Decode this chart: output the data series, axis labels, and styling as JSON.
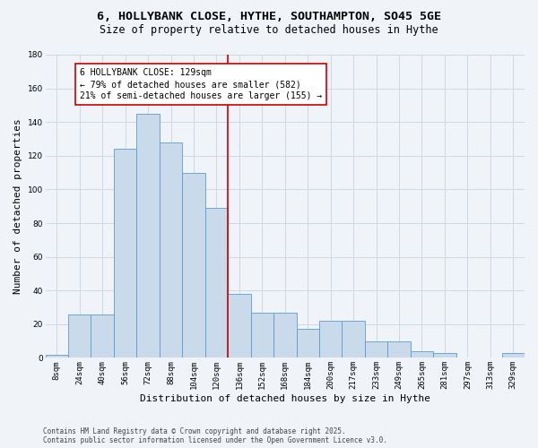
{
  "title_line1": "6, HOLLYBANK CLOSE, HYTHE, SOUTHAMPTON, SO45 5GE",
  "title_line2": "Size of property relative to detached houses in Hythe",
  "xlabel": "Distribution of detached houses by size in Hythe",
  "ylabel": "Number of detached properties",
  "bar_labels": [
    "8sqm",
    "24sqm",
    "40sqm",
    "56sqm",
    "72sqm",
    "88sqm",
    "104sqm",
    "120sqm",
    "136sqm",
    "152sqm",
    "168sqm",
    "184sqm",
    "200sqm",
    "217sqm",
    "233sqm",
    "249sqm",
    "265sqm",
    "281sqm",
    "297sqm",
    "313sqm",
    "329sqm"
  ],
  "bar_values": [
    2,
    26,
    26,
    124,
    145,
    128,
    110,
    89,
    38,
    27,
    27,
    17,
    22,
    22,
    10,
    10,
    4,
    3,
    0,
    0,
    3
  ],
  "bar_color": "#c9daea",
  "bar_edge_color": "#5b9bd5",
  "vline_color": "#cc0000",
  "annotation_text": "6 HOLLYBANK CLOSE: 129sqm\n← 79% of detached houses are smaller (582)\n21% of semi-detached houses are larger (155) →",
  "annotation_box_color": "#cc0000",
  "ylim": [
    0,
    180
  ],
  "yticks": [
    0,
    20,
    40,
    60,
    80,
    100,
    120,
    140,
    160,
    180
  ],
  "grid_color": "#d0d8e4",
  "background_color": "#f0f4f8",
  "footer_text": "Contains HM Land Registry data © Crown copyright and database right 2025.\nContains public sector information licensed under the Open Government Licence v3.0.",
  "title_fontsize": 9.5,
  "subtitle_fontsize": 8.5,
  "axis_label_fontsize": 8,
  "tick_fontsize": 6.5,
  "annotation_fontsize": 7,
  "footer_fontsize": 5.5
}
